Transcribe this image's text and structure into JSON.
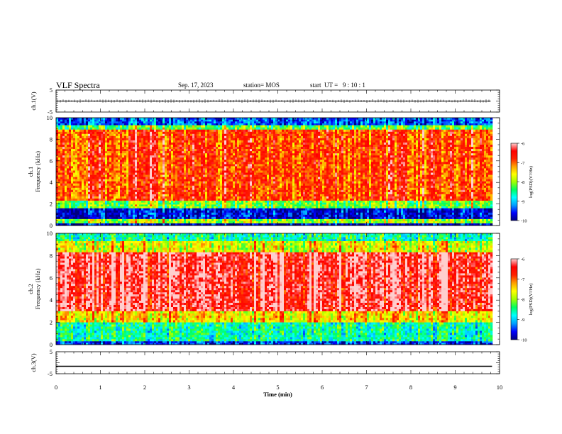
{
  "header": {
    "title": "VLF Spectra",
    "date": "Sep. 17, 2023",
    "station": "station= MOS",
    "start_ut": "start  UT =   9 : 10 : 1"
  },
  "chart_data": [
    {
      "type": "line",
      "panel": "ch1-voltage",
      "ylabel": "ch.1(V)",
      "ylim": [
        -5,
        5
      ],
      "y_ticks": [
        "5",
        "-5"
      ],
      "series": [
        {
          "x": [
            0,
            9.8
          ],
          "y": [
            0,
            0
          ]
        }
      ]
    },
    {
      "type": "heatmap",
      "panel": "ch1-spectrogram",
      "ylabel": "ch.1",
      "ylabel2": "Frequency (kHz)",
      "ylim": [
        0,
        10
      ],
      "y_ticks": [
        "0",
        "2",
        "4",
        "6",
        "8",
        "10"
      ],
      "xlim": [
        0,
        10
      ],
      "data_end_min": 9.83,
      "colorbar": {
        "label": "log(PSD)(V²/Hz)",
        "range": [
          -10,
          -6
        ],
        "ticks": [
          "-6",
          "-7",
          "-8",
          "-9",
          "-10"
        ]
      },
      "bands": [
        {
          "f_lo": 9.3,
          "f_hi": 10.0,
          "level": -9.4
        },
        {
          "f_lo": 8.9,
          "f_hi": 9.3,
          "level": -8.3
        },
        {
          "f_lo": 2.3,
          "f_hi": 8.9,
          "level": -6.9
        },
        {
          "f_lo": 1.6,
          "f_hi": 2.3,
          "level": -8.2
        },
        {
          "f_lo": 0.6,
          "f_hi": 1.6,
          "level": -9.7
        },
        {
          "f_lo": 0.2,
          "f_hi": 0.6,
          "level": -8.0
        },
        {
          "f_lo": 0.0,
          "f_hi": 0.2,
          "level": -9.8
        }
      ]
    },
    {
      "type": "heatmap",
      "panel": "ch2-spectrogram",
      "ylabel": "ch.2",
      "ylabel2": "Frequency (kHz)",
      "ylim": [
        0,
        10
      ],
      "y_ticks": [
        "0",
        "2",
        "4",
        "6",
        "8",
        "10"
      ],
      "xlim": [
        0,
        10
      ],
      "data_end_min": 9.83,
      "colorbar": {
        "label": "log(PSD)(V²/Hz)",
        "range": [
          -10,
          -6
        ],
        "ticks": [
          "-6",
          "-7",
          "-8",
          "-9",
          "-10"
        ]
      },
      "bands": [
        {
          "f_lo": 9.3,
          "f_hi": 10.0,
          "level": -8.6
        },
        {
          "f_lo": 8.3,
          "f_hi": 9.3,
          "level": -7.8
        },
        {
          "f_lo": 3.0,
          "f_hi": 8.3,
          "level": -6.4
        },
        {
          "f_lo": 2.0,
          "f_hi": 3.0,
          "level": -7.6
        },
        {
          "f_lo": 0.3,
          "f_hi": 2.0,
          "level": -8.6
        },
        {
          "f_lo": 0.0,
          "f_hi": 0.3,
          "level": -9.5
        }
      ]
    },
    {
      "type": "line",
      "panel": "ch3-voltage",
      "ylabel": "ch.3(V)",
      "ylim": [
        -5,
        5
      ],
      "y_ticks": [
        "5",
        "-5"
      ],
      "series": [
        {
          "x": [
            0,
            9.83
          ],
          "y": [
            -1.6,
            -1.6
          ]
        }
      ]
    }
  ],
  "xaxis": {
    "label": "Time  (min)",
    "range": [
      0,
      10
    ],
    "ticks": [
      "0",
      "1",
      "2",
      "3",
      "4",
      "5",
      "6",
      "7",
      "8",
      "9",
      "10"
    ]
  },
  "colors": {
    "scale": [
      "#000080",
      "#0000ff",
      "#00a0ff",
      "#00ffff",
      "#00ff60",
      "#a0ff00",
      "#ffff00",
      "#ffa000",
      "#ff2000",
      "#ff0000",
      "#ffd0d0"
    ]
  }
}
